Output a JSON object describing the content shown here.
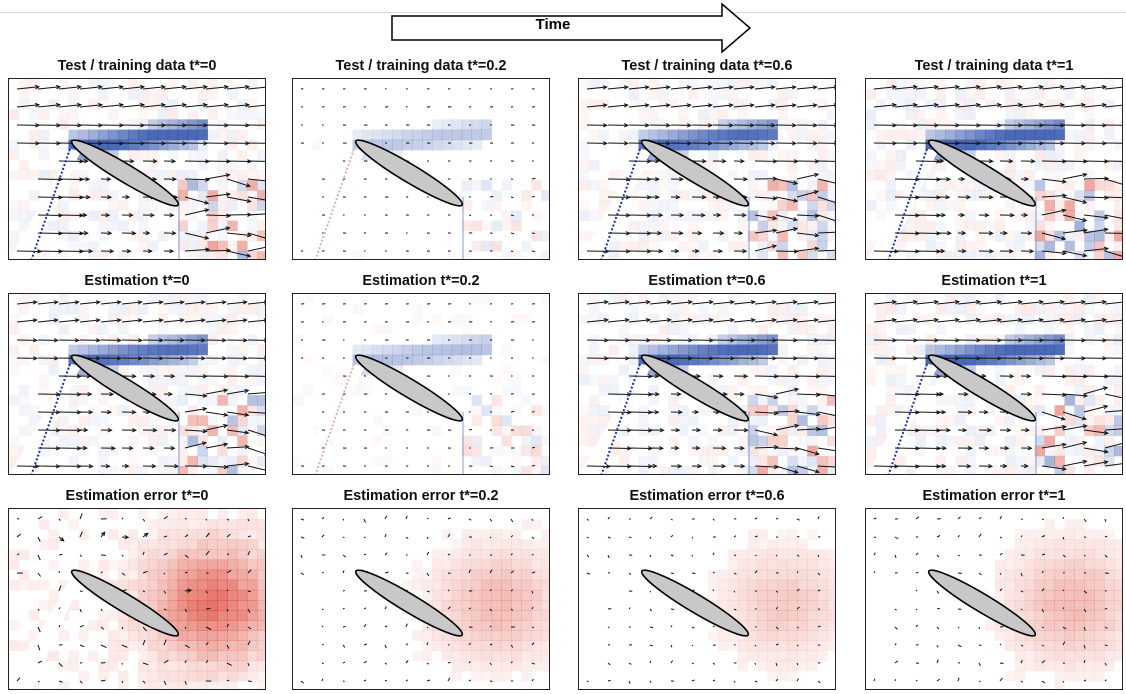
{
  "header": {
    "time_label": "Time"
  },
  "rows": [
    {
      "id": "test",
      "titles": [
        "Test / training data t*=0",
        "Test / training data t*=0.2",
        "Test / training data t*=0.6",
        "Test / training data t*=1"
      ]
    },
    {
      "id": "estimation",
      "titles": [
        "Estimation t*=0",
        "Estimation t*=0.2",
        "Estimation t*=0.6",
        "Estimation t*=1"
      ]
    },
    {
      "id": "error",
      "titles": [
        "Estimation error t*=0",
        "Estimation error t*=0.2",
        "Estimation error t*=0.6",
        "Estimation error t*=1"
      ]
    }
  ],
  "colors": {
    "positive": "#d7301f",
    "negative": "#2b4ea8",
    "airfoil_fill": "#c8c8c8",
    "shear_line": "#1a2fa0",
    "arrow": "#111111"
  }
}
